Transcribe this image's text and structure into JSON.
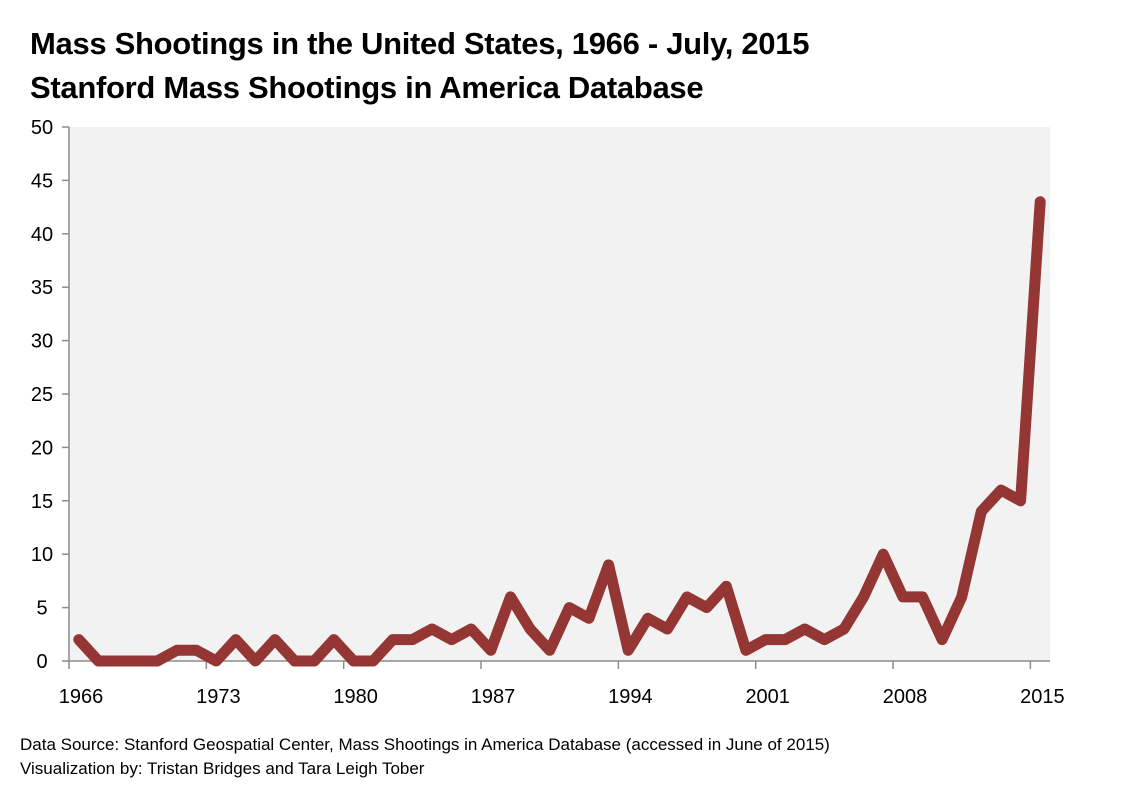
{
  "chart_data": {
    "type": "line",
    "title": "Mass Shootings in the United States, 1966 - July, 2015",
    "subtitle": "Stanford Mass Shootings in America Database",
    "xlabel": "",
    "ylabel": "",
    "x": [
      1966,
      1967,
      1968,
      1969,
      1970,
      1971,
      1972,
      1973,
      1974,
      1975,
      1976,
      1977,
      1978,
      1979,
      1980,
      1981,
      1982,
      1983,
      1984,
      1985,
      1986,
      1987,
      1988,
      1989,
      1990,
      1991,
      1992,
      1993,
      1994,
      1995,
      1996,
      1997,
      1998,
      1999,
      2000,
      2001,
      2002,
      2003,
      2004,
      2005,
      2006,
      2007,
      2008,
      2009,
      2010,
      2011,
      2012,
      2013,
      2014,
      2015
    ],
    "series": [
      {
        "name": "Mass shootings",
        "color": "#943634",
        "values": [
          2,
          0,
          0,
          0,
          0,
          1,
          1,
          0,
          2,
          0,
          2,
          0,
          0,
          2,
          0,
          0,
          2,
          2,
          3,
          2,
          3,
          1,
          6,
          3,
          1,
          5,
          4,
          9,
          1,
          4,
          3,
          6,
          5,
          7,
          1,
          2,
          2,
          3,
          2,
          3,
          6,
          10,
          6,
          6,
          2,
          6,
          14,
          16,
          15,
          43
        ]
      }
    ],
    "ylim": [
      0,
      50
    ],
    "yticks": [
      0,
      5,
      10,
      15,
      20,
      25,
      30,
      35,
      40,
      45,
      50
    ],
    "xticks": [
      1966,
      1973,
      1980,
      1987,
      1994,
      2001,
      2008,
      2015
    ],
    "grid": false,
    "legend": "none",
    "plot_background": "#f2f2f2"
  },
  "footer": {
    "source": "Data Source: Stanford Geospatial Center, Mass Shootings in America Database (accessed in June of 2015)",
    "credit": "Visualization by: Tristan Bridges and Tara Leigh Tober"
  }
}
